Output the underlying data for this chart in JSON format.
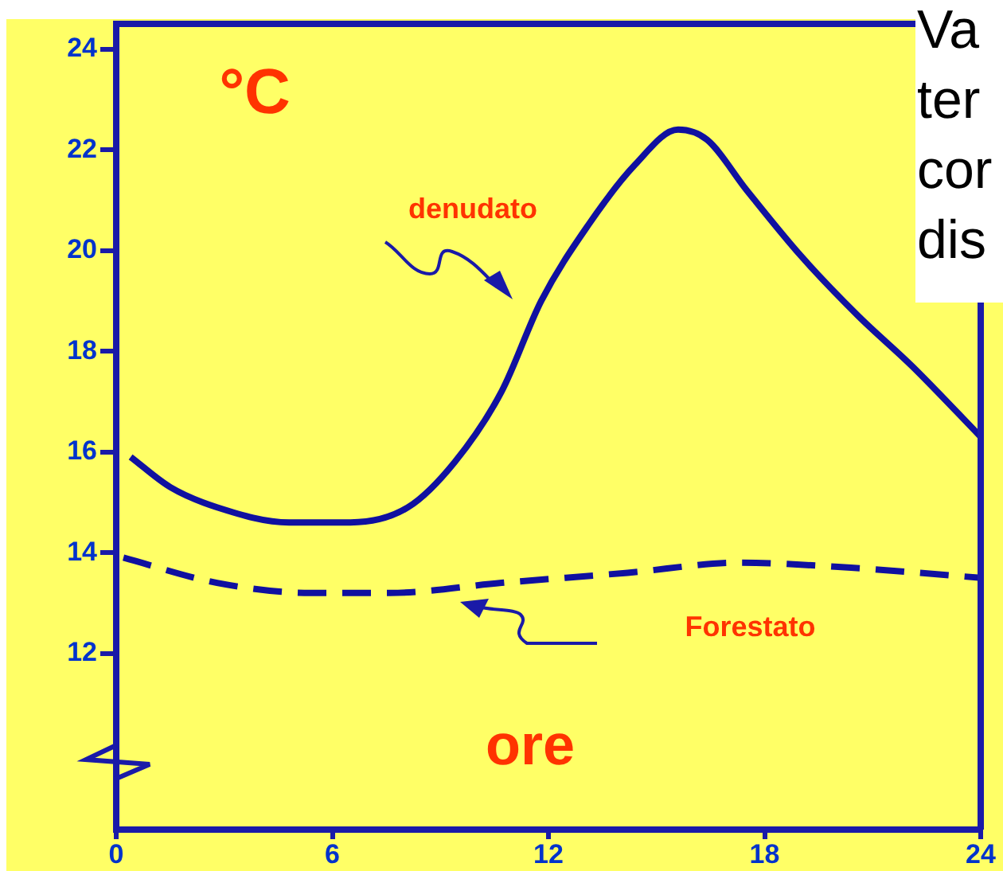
{
  "chart_data": {
    "type": "line",
    "xlabel": "ore",
    "ylabel": "°C",
    "xlim": [
      0,
      24
    ],
    "xticks": [
      0,
      6,
      12,
      18,
      24
    ],
    "ylim": [
      8.5,
      24.5
    ],
    "yticks": [
      12,
      14,
      16,
      18,
      20,
      22,
      24
    ],
    "grid": false,
    "legend": false,
    "marker": "none",
    "annotations": [
      "Va",
      "ter",
      "cor",
      "dis"
    ],
    "series": [
      {
        "name": "denudato",
        "color": "#1010a0",
        "line_style": "solid",
        "x": [
          0.4,
          1.5,
          2.8,
          4.8,
          6.5,
          8.1,
          9.4,
          10.7,
          11.8,
          13.1,
          14.4,
          15.6,
          16.4,
          17.5,
          19.0,
          20.6,
          22.1,
          24
        ],
        "values": [
          15.9,
          15.3,
          14.9,
          14.6,
          14.6,
          14.9,
          15.8,
          17.2,
          19.0,
          20.5,
          21.7,
          22.4,
          22.2,
          21.2,
          19.9,
          18.7,
          17.7,
          16.3
        ]
      },
      {
        "name": "Forestato",
        "color": "#1010a0",
        "line_style": "dashed",
        "x": [
          0.2,
          2.8,
          5.4,
          7.6,
          10.7,
          14.2,
          17.3,
          20.4,
          24
        ],
        "values": [
          13.9,
          13.4,
          13.2,
          13.2,
          13.4,
          13.6,
          13.8,
          13.7,
          13.5
        ]
      }
    ]
  }
}
